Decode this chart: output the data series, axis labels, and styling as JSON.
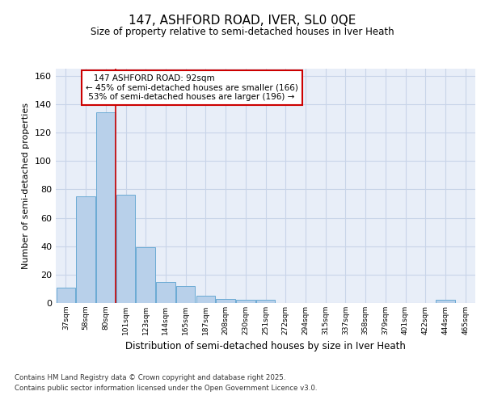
{
  "title": "147, ASHFORD ROAD, IVER, SL0 0QE",
  "subtitle": "Size of property relative to semi-detached houses in Iver Heath",
  "xlabel": "Distribution of semi-detached houses by size in Iver Heath",
  "ylabel": "Number of semi-detached properties",
  "categories": [
    "37sqm",
    "58sqm",
    "80sqm",
    "101sqm",
    "123sqm",
    "144sqm",
    "165sqm",
    "187sqm",
    "208sqm",
    "230sqm",
    "251sqm",
    "272sqm",
    "294sqm",
    "315sqm",
    "337sqm",
    "358sqm",
    "379sqm",
    "401sqm",
    "422sqm",
    "444sqm",
    "465sqm"
  ],
  "values": [
    11,
    75,
    134,
    76,
    39,
    15,
    12,
    5,
    3,
    2,
    2,
    0,
    0,
    0,
    0,
    0,
    0,
    0,
    0,
    2,
    0
  ],
  "bar_color": "#b8d0ea",
  "bar_edge_color": "#6aaad4",
  "property_label": "147 ASHFORD ROAD: 92sqm",
  "pct_smaller": 45,
  "count_smaller": 166,
  "pct_larger": 53,
  "count_larger": 196,
  "red_line_x": 2.5,
  "ylim": [
    0,
    165
  ],
  "yticks": [
    0,
    20,
    40,
    60,
    80,
    100,
    120,
    140,
    160
  ],
  "grid_color": "#c8d4e8",
  "background_color": "#e8eef8",
  "footer_line1": "Contains HM Land Registry data © Crown copyright and database right 2025.",
  "footer_line2": "Contains public sector information licensed under the Open Government Licence v3.0."
}
